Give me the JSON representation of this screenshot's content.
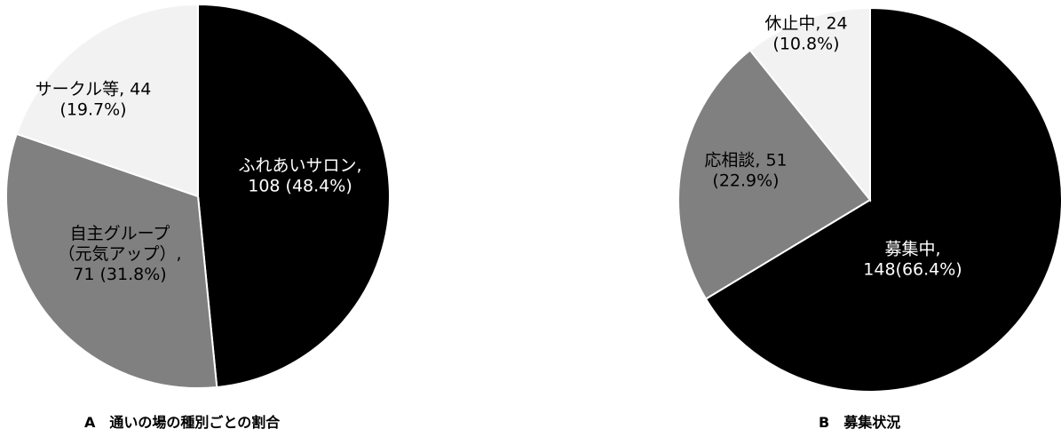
{
  "chart_data": [
    {
      "type": "pie",
      "title": "A　通いの場の種別ごとの割合",
      "slices": [
        {
          "name": "ふれあいサロン",
          "value": 108,
          "percent": 48.4,
          "color": "#000000",
          "label_lines": [
            "ふれあいサロン,",
            "108 (48.4%)"
          ],
          "label_color": "#ffffff"
        },
        {
          "name": "自主グループ（元気アップ）",
          "value": 71,
          "percent": 31.8,
          "color": "#808080",
          "label_lines": [
            "自主グループ",
            "（元気アップ）,",
            "71 (31.8%)"
          ],
          "label_color": "#000000"
        },
        {
          "name": "サークル等",
          "value": 44,
          "percent": 19.7,
          "color": "#f2f2f2",
          "label_lines": [
            "サークル等, 44",
            "(19.7%)"
          ],
          "label_color": "#000000"
        }
      ]
    },
    {
      "type": "pie",
      "title": "B　募集状況",
      "slices": [
        {
          "name": "募集中",
          "value": 148,
          "percent": 66.4,
          "color": "#000000",
          "label_lines": [
            "募集中,",
            "148(66.4%)"
          ],
          "label_color": "#ffffff"
        },
        {
          "name": "応相談",
          "value": 51,
          "percent": 22.9,
          "color": "#808080",
          "label_lines": [
            "応相談, 51",
            "(22.9%)"
          ],
          "label_color": "#000000"
        },
        {
          "name": "休止中",
          "value": 24,
          "percent": 10.8,
          "color": "#f2f2f2",
          "label_lines": [
            "休止中, 24",
            "(10.8%)"
          ],
          "label_color": "#000000"
        }
      ]
    }
  ]
}
